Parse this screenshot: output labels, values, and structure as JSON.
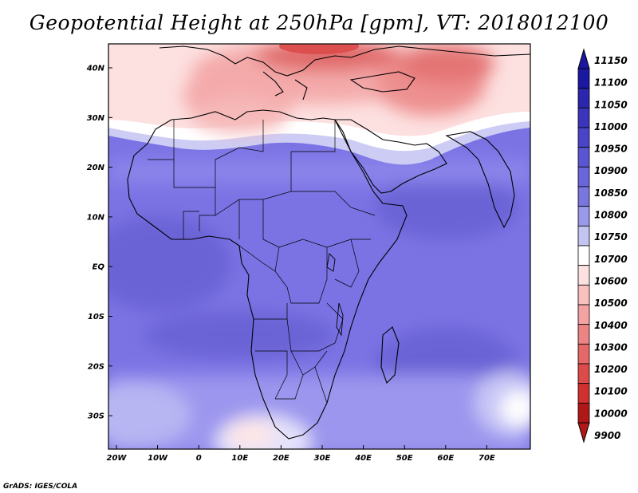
{
  "title": "Geopotential Height at 250hPa [gpm], VT: 2018012100",
  "credit": "GrADS: IGES/COLA",
  "map": {
    "lat_ticks": [
      "40N",
      "30N",
      "20N",
      "10N",
      "EQ",
      "10S",
      "20S",
      "30S"
    ],
    "lon_ticks": [
      "20W",
      "10W",
      "0",
      "10E",
      "20E",
      "30E",
      "40E",
      "50E",
      "60E",
      "70E"
    ]
  },
  "colorbar": {
    "labels": [
      "11150",
      "11100",
      "11050",
      "11000",
      "10950",
      "10900",
      "10850",
      "10800",
      "10750",
      "10700",
      "10600",
      "10500",
      "10400",
      "10300",
      "10200",
      "10100",
      "10000",
      "9900"
    ],
    "colors": [
      "#1a17a0",
      "#2a26ad",
      "#3a35bb",
      "#4a45c8",
      "#5a55d2",
      "#6a65da",
      "#7a76e0",
      "#9a98ea",
      "#c4c4f3",
      "#ffffff",
      "#fde0e0",
      "#f9c0c0",
      "#f4a2a2",
      "#ec8484",
      "#e46868",
      "#dc4a4a",
      "#d03030",
      "#b01818"
    ]
  }
}
